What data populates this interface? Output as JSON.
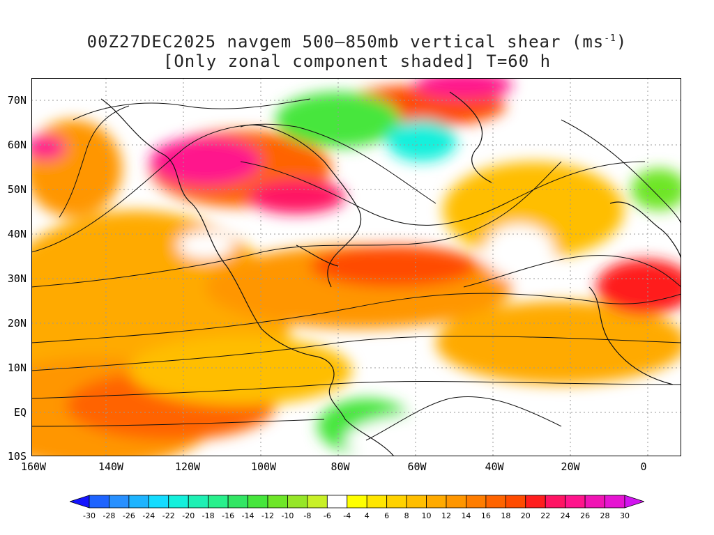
{
  "title": {
    "line1_main": "00Z27DEC2025 navgem 500–850mb vertical shear (ms",
    "line1_sup": "-1",
    "line1_end": ")",
    "line2": "[Only zonal component shaded] T=60 h"
  },
  "lat_labels": [
    "70N",
    "60N",
    "50N",
    "40N",
    "30N",
    "20N",
    "10N",
    "EQ",
    "10S"
  ],
  "lon_labels": [
    "160W",
    "140W",
    "120W",
    "100W",
    "80W",
    "60W",
    "40W",
    "20W",
    "0"
  ],
  "colorbar": {
    "labels": [
      "-30",
      "-28",
      "-26",
      "-24",
      "-22",
      "-20",
      "-18",
      "-16",
      "-14",
      "-12",
      "-10",
      "-8",
      "-6",
      "-4",
      "4",
      "6",
      "8",
      "10",
      "12",
      "14",
      "16",
      "18",
      "20",
      "22",
      "24",
      "26",
      "28",
      "30"
    ],
    "colors": [
      "#1414ff",
      "#1e64ff",
      "#2890ff",
      "#1eb4ff",
      "#14dcff",
      "#14f0dc",
      "#1ef0b4",
      "#28f08c",
      "#32e664",
      "#46e63c",
      "#6ee628",
      "#96e628",
      "#c8f028",
      "#ffffff",
      "#ffff00",
      "#ffe600",
      "#ffd200",
      "#ffbe00",
      "#ffaa00",
      "#ff9600",
      "#ff7d00",
      "#ff6400",
      "#ff4b00",
      "#ff1e1e",
      "#ff1464",
      "#ff148c",
      "#f014b4",
      "#e614d2",
      "#d214f0"
    ]
  }
}
